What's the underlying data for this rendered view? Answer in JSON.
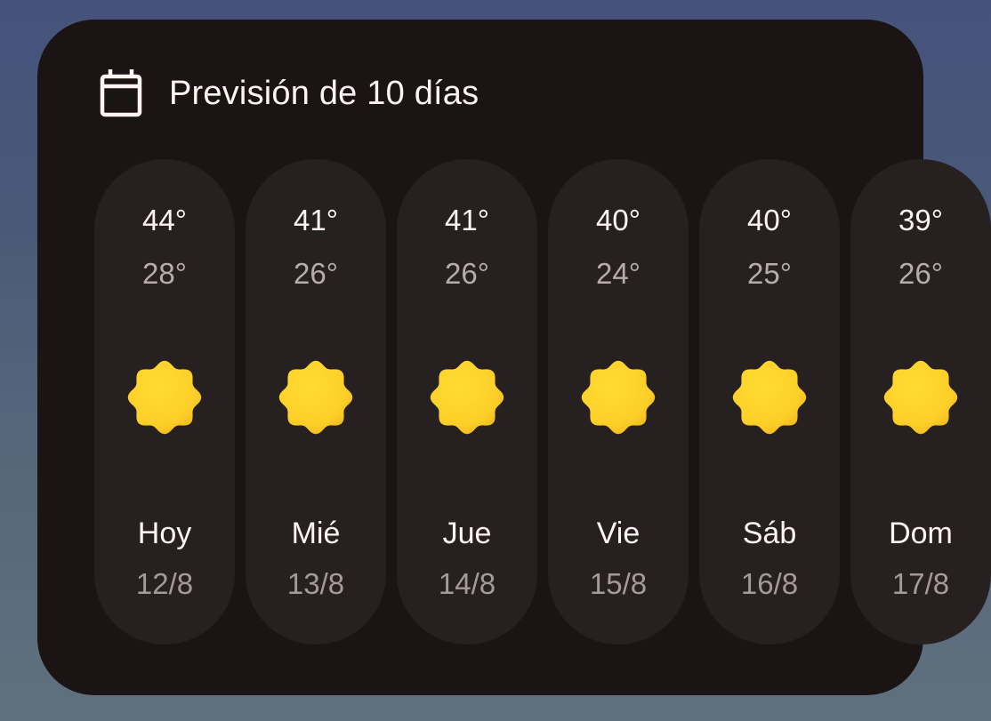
{
  "header": {
    "title": "Previsión de 10 días",
    "icon": "calendar-icon"
  },
  "colors": {
    "card": "#1b1414",
    "pill": "#272020",
    "sun": "#fcd02a"
  },
  "days": [
    {
      "high": "44°",
      "low": "28°",
      "icon": "sunny-icon",
      "day": "Hoy",
      "date": "12/8"
    },
    {
      "high": "41°",
      "low": "26°",
      "icon": "sunny-icon",
      "day": "Mié",
      "date": "13/8"
    },
    {
      "high": "41°",
      "low": "26°",
      "icon": "sunny-icon",
      "day": "Jue",
      "date": "14/8"
    },
    {
      "high": "40°",
      "low": "24°",
      "icon": "sunny-icon",
      "day": "Vie",
      "date": "15/8"
    },
    {
      "high": "40°",
      "low": "25°",
      "icon": "sunny-icon",
      "day": "Sáb",
      "date": "16/8"
    },
    {
      "high": "39°",
      "low": "26°",
      "icon": "sunny-icon",
      "day": "Dom",
      "date": "17/8"
    }
  ]
}
